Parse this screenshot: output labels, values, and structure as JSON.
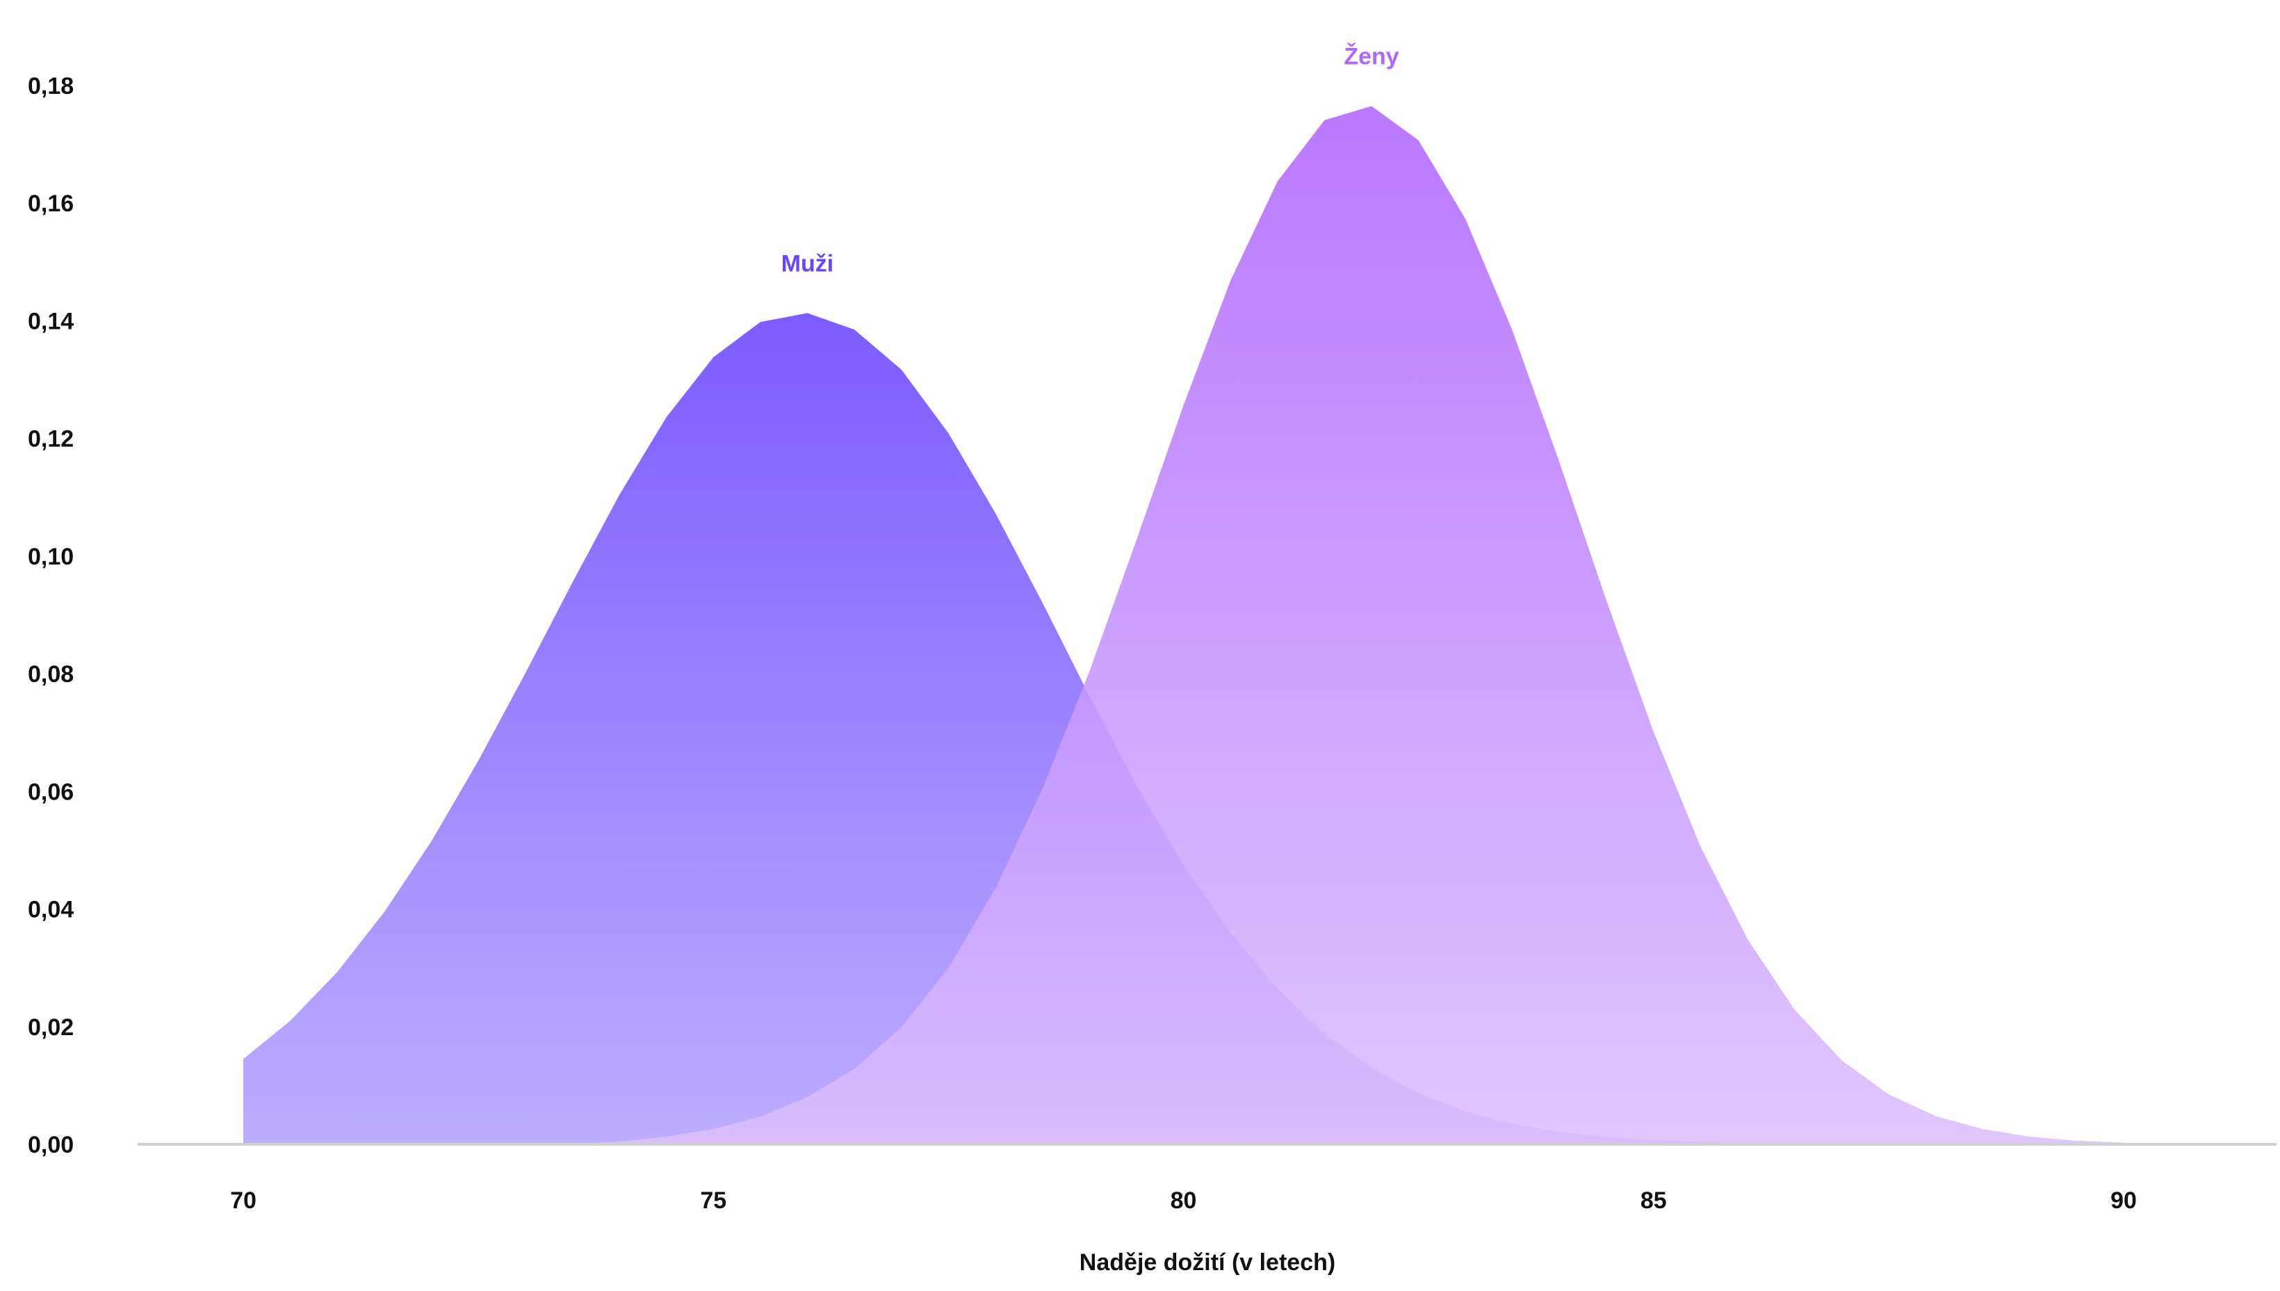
{
  "chart_data": {
    "type": "area",
    "xlabel": "Naděje dožití (v letech)",
    "ylabel": "",
    "xlim": [
      70,
      90
    ],
    "ylim": [
      0,
      0.18
    ],
    "x_ticks": [
      70,
      75,
      80,
      85,
      90
    ],
    "x_tick_labels": [
      "70",
      "75",
      "80",
      "85",
      "90"
    ],
    "y_ticks": [
      0,
      0.02,
      0.04,
      0.06,
      0.08,
      0.1,
      0.12,
      0.14,
      0.16,
      0.18
    ],
    "y_tick_labels": [
      "0,00",
      "0,02",
      "0,04",
      "0,06",
      "0,08",
      "0,10",
      "0,12",
      "0,14",
      "0,16",
      "0,18"
    ],
    "grid": false,
    "series": [
      {
        "name": "Muži",
        "color_top": "#6a45ff",
        "color_bottom": "#b3a3ff",
        "x": [
          70.0,
          70.5,
          71.0,
          71.5,
          72.0,
          72.5,
          73.0,
          73.5,
          74.0,
          74.5,
          75.0,
          75.5,
          76.0,
          76.5,
          77.0,
          77.5,
          78.0,
          78.5,
          79.0,
          79.5,
          80.0,
          80.5,
          81.0,
          81.5,
          82.0,
          82.5,
          83.0,
          83.5,
          84.0,
          84.5,
          85.0,
          85.5,
          86.0,
          86.5,
          87.0,
          87.5,
          88.0,
          88.5,
          89.0,
          89.5,
          90.0
        ],
        "values": [
          0.0145,
          0.021,
          0.0293,
          0.0395,
          0.0515,
          0.0652,
          0.0801,
          0.0955,
          0.1104,
          0.1236,
          0.1338,
          0.1398,
          0.1413,
          0.1385,
          0.1317,
          0.1209,
          0.1073,
          0.0921,
          0.0762,
          0.061,
          0.0475,
          0.036,
          0.0265,
          0.0189,
          0.013,
          0.0087,
          0.0056,
          0.0035,
          0.0021,
          0.0012,
          0.0007,
          0.0004,
          0.0002,
          0.0001,
          0.0,
          0.0,
          0.0,
          0.0,
          0.0,
          0.0,
          0.0
        ]
      },
      {
        "name": "Ženy",
        "color_top": "#b066ff",
        "color_bottom": "#dcbfff",
        "x": [
          70.0,
          70.5,
          71.0,
          71.5,
          72.0,
          72.5,
          73.0,
          73.5,
          74.0,
          74.5,
          75.0,
          75.5,
          76.0,
          76.5,
          77.0,
          77.5,
          78.0,
          78.5,
          79.0,
          79.5,
          80.0,
          80.5,
          81.0,
          81.5,
          82.0,
          82.5,
          83.0,
          83.5,
          84.0,
          84.5,
          85.0,
          85.5,
          86.0,
          86.5,
          87.0,
          87.5,
          88.0,
          88.5,
          89.0,
          89.5,
          90.0
        ],
        "values": [
          0.0,
          0.0,
          0.0,
          0.0,
          0.0,
          0.0,
          0.0,
          0.0,
          0.0005,
          0.0013,
          0.0026,
          0.0047,
          0.008,
          0.0128,
          0.0199,
          0.03,
          0.0435,
          0.0604,
          0.0804,
          0.1027,
          0.1256,
          0.1468,
          0.1637,
          0.1741,
          0.1765,
          0.1707,
          0.1573,
          0.1383,
          0.1159,
          0.0924,
          0.0701,
          0.0506,
          0.0349,
          0.0229,
          0.0143,
          0.0085,
          0.0048,
          0.0026,
          0.0013,
          0.0006,
          0.0003
        ]
      }
    ]
  }
}
